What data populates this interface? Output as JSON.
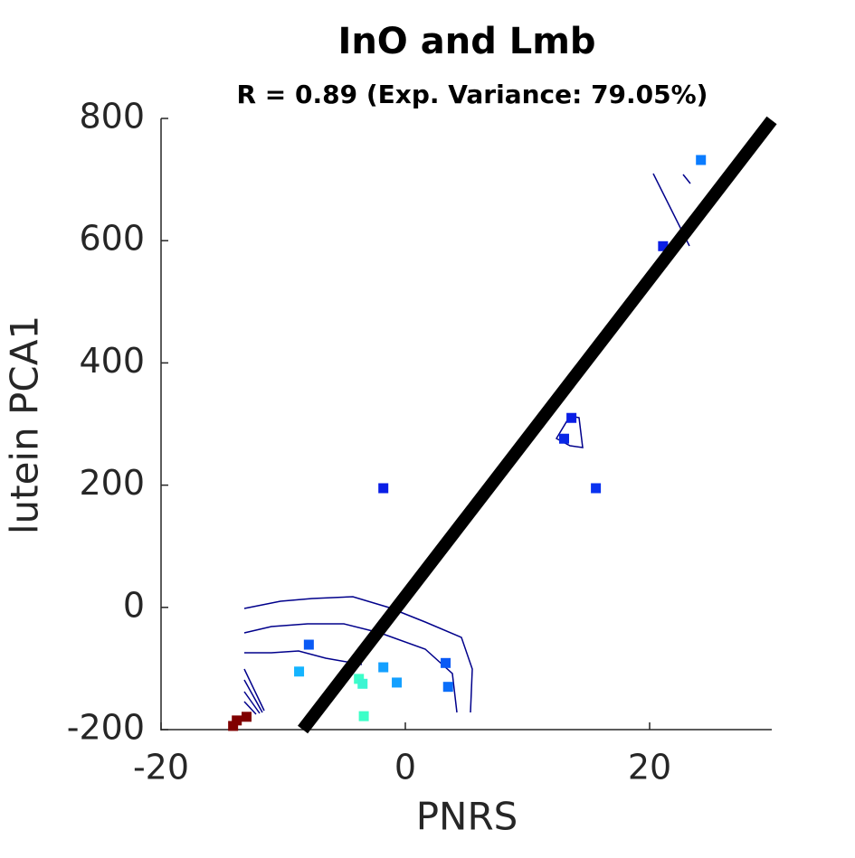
{
  "chart_data": {
    "type": "scatter",
    "title": "InO and Lmb",
    "subtitle": "R = 0.89 (Exp. Variance: 79.05%)",
    "xlabel": "PNRS",
    "ylabel": "lutein PCA1",
    "xlim": [
      -20,
      30
    ],
    "xticks": [
      -20,
      0,
      20
    ],
    "ylim": [
      -200,
      800
    ],
    "yticks": [
      -200,
      0,
      200,
      400,
      600,
      800
    ],
    "x": [
      24.2,
      21.1,
      13.6,
      13.0,
      15.6,
      -1.8,
      -7.9,
      -8.7,
      -3.8,
      -3.5,
      -1.8,
      -0.7,
      3.3,
      3.5,
      -3.4,
      -14.1,
      -13.8,
      -13.0
    ],
    "values": [
      732,
      591,
      310,
      276,
      195,
      195,
      -61,
      -105,
      -117,
      -125,
      -98,
      -123,
      -91,
      -130,
      -178,
      -194,
      -185,
      -179
    ],
    "point_colors": [
      "#0a7cff",
      "#0a1ee6",
      "#0a1ee6",
      "#0a28e6",
      "#0a32f0",
      "#0a1ee6",
      "#0a5af5",
      "#14b4ff",
      "#3cffc8",
      "#3cf5d2",
      "#14a0ff",
      "#14a0ff",
      "#0a5af5",
      "#0a6efa",
      "#3cffc8",
      "#800000",
      "#800000",
      "#800000"
    ],
    "fit": {
      "x": [
        -8.4,
        30
      ],
      "y": [
        -200,
        797
      ],
      "color": "#000000"
    }
  }
}
